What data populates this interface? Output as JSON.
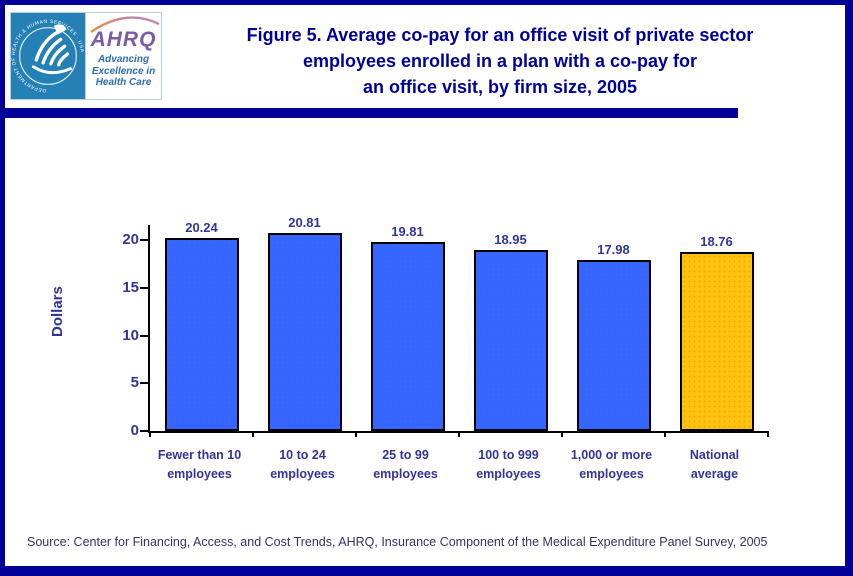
{
  "header": {
    "title_lines": [
      "Figure 5. Average co-pay for an office visit of private sector",
      "employees enrolled in a plan with a co-pay for",
      "an office visit, by firm size, 2005"
    ]
  },
  "logo": {
    "hhs_seal_text": "DEPARTMENT OF HEALTH & HUMAN SERVICES · USA",
    "ahrq_wordmark": "AHRQ",
    "tagline_lines": [
      "Advancing",
      "Excellence in",
      "Health Care"
    ]
  },
  "chart_data": {
    "type": "bar",
    "title": "Figure 5. Average co-pay for an office visit of private sector employees enrolled in a plan with a co-pay for an office visit, by firm size, 2005",
    "categories": [
      "Fewer than 10\nemployees",
      "10 to 24\nemployees",
      "25 to 99\nemployees",
      "100 to 999\nemployees",
      "1,000 or more\nemployees",
      "National\naverage"
    ],
    "values": [
      20.24,
      20.81,
      19.81,
      18.95,
      17.98,
      18.76
    ],
    "value_labels": [
      "20.24",
      "20.81",
      "19.81",
      "18.95",
      "17.98",
      "18.76"
    ],
    "xlabel": "",
    "ylabel": "Dollars",
    "yticks": [
      0,
      5,
      10,
      15,
      20
    ],
    "ylim": [
      0,
      21.6
    ],
    "grid": false,
    "legend": "none",
    "bar_colors": [
      "#3366FF",
      "#3366FF",
      "#3366FF",
      "#3366FF",
      "#3366FF",
      "#FFC20E"
    ],
    "bar_border_color": "#000000"
  },
  "colors": {
    "accent_navy": "#000099",
    "label_blue": "#333399",
    "bar_blue": "#3366FF",
    "bar_gold": "#FFC20E",
    "seal_blue": "#2580B5",
    "ahrq_purple": "#7B5BA6",
    "tagline_blue": "#2A6DB5"
  },
  "source": "Source: Center for Financing, Access, and Cost Trends, AHRQ, Insurance Component of the Medical Expenditure Panel Survey, 2005"
}
